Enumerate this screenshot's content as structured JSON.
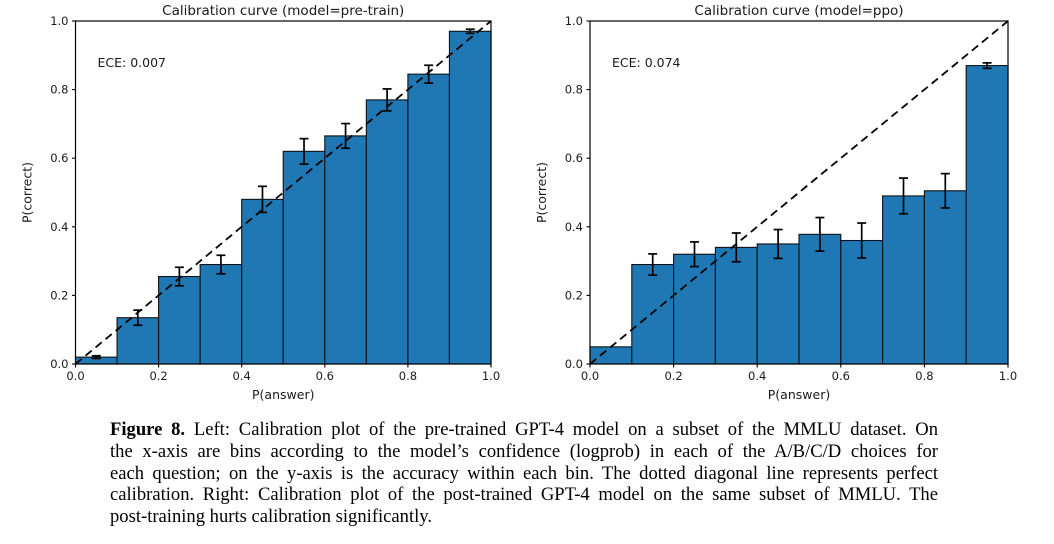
{
  "colors": {
    "bar_fill": "#1f77b4",
    "bar_edge": "#0d1117",
    "axis": "#000000",
    "text": "#1a1a1a",
    "background": "#ffffff"
  },
  "chart_data": [
    {
      "type": "bar",
      "title": "Calibration curve (model=pre-train)",
      "annotation": "ECE: 0.007",
      "xlabel": "P(answer)",
      "ylabel": "P(correct)",
      "xlim": [
        0.0,
        1.0
      ],
      "ylim": [
        0.0,
        1.0
      ],
      "xticks": [
        0.0,
        0.2,
        0.4,
        0.6,
        0.8,
        1.0
      ],
      "yticks": [
        0.0,
        0.2,
        0.4,
        0.6,
        0.8,
        1.0
      ],
      "grid": false,
      "diagonal": "dashed line from (0,0) to (1,1) = perfect calibration",
      "bin_width": 0.1,
      "bin_centers": [
        0.05,
        0.15,
        0.25,
        0.35,
        0.45,
        0.55,
        0.65,
        0.75,
        0.85,
        0.95
      ],
      "values": [
        0.02,
        0.135,
        0.255,
        0.29,
        0.48,
        0.62,
        0.665,
        0.77,
        0.845,
        0.97
      ],
      "errors": [
        0.004,
        0.022,
        0.027,
        0.027,
        0.038,
        0.037,
        0.036,
        0.032,
        0.026,
        0.006
      ]
    },
    {
      "type": "bar",
      "title": "Calibration curve (model=ppo)",
      "annotation": "ECE: 0.074",
      "xlabel": "P(answer)",
      "ylabel": "P(correct)",
      "xlim": [
        0.0,
        1.0
      ],
      "ylim": [
        0.0,
        1.0
      ],
      "xticks": [
        0.0,
        0.2,
        0.4,
        0.6,
        0.8,
        1.0
      ],
      "yticks": [
        0.0,
        0.2,
        0.4,
        0.6,
        0.8,
        1.0
      ],
      "grid": false,
      "diagonal": "dashed line from (0,0) to (1,1) = perfect calibration",
      "bin_width": 0.1,
      "bin_centers": [
        0.05,
        0.15,
        0.25,
        0.35,
        0.45,
        0.55,
        0.65,
        0.75,
        0.85,
        0.95
      ],
      "values": [
        0.05,
        0.29,
        0.32,
        0.34,
        0.35,
        0.378,
        0.36,
        0.49,
        0.505,
        0.87
      ],
      "errors": [
        0,
        0.031,
        0.036,
        0.042,
        0.042,
        0.049,
        0.051,
        0.052,
        0.05,
        0.008
      ]
    }
  ],
  "caption": {
    "label": "Figure 8.",
    "lines": [
      "Left: Calibration plot of the pre-trained GPT-4 model on a subset of the MMLU dataset. On",
      "the x-axis are bins according to the model’s confidence (logprob) in each of the A/B/C/D choices for",
      "each question; on the y-axis is the accuracy within each bin. The dotted diagonal line represents perfect",
      "calibration. Right: Calibration plot of the post-trained GPT-4 model on the same subset of MMLU. The",
      "post-training hurts calibration significantly."
    ]
  }
}
